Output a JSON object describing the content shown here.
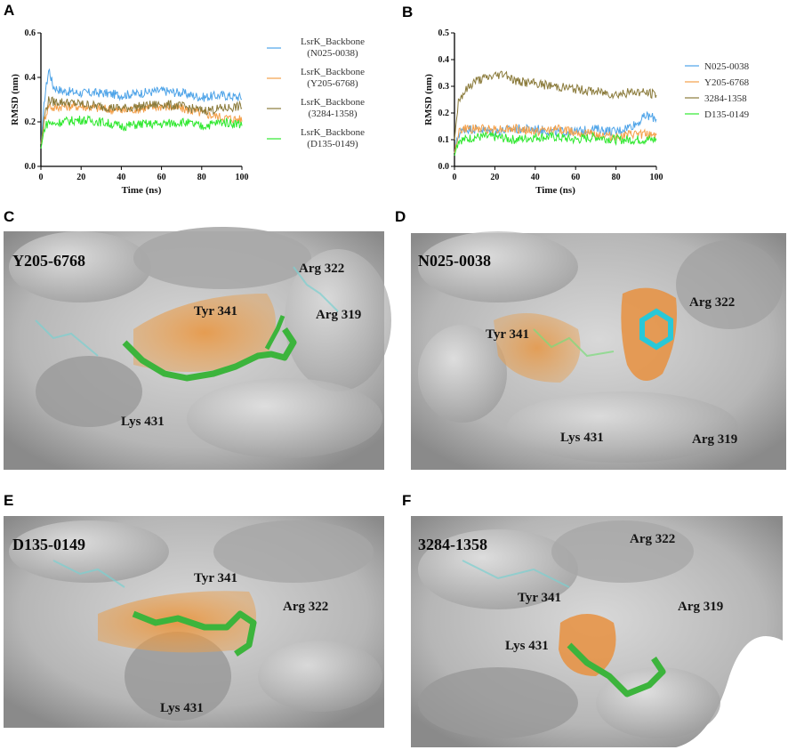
{
  "panels": {
    "A": "A",
    "B": "B",
    "C": "C",
    "D": "D",
    "E": "E",
    "F": "F"
  },
  "chart_data": [
    {
      "panel": "A",
      "type": "line",
      "xlabel": "Time (ns)",
      "ylabel": "RMSD (nm)",
      "xlim": [
        0,
        100
      ],
      "ylim": [
        0,
        0.6
      ],
      "xticks": [
        "0",
        "20",
        "40",
        "60",
        "80",
        "100"
      ],
      "yticks": [
        "0.0",
        "0.2",
        "0.4",
        "0.6"
      ],
      "legend_position": "right",
      "legend": [
        [
          "LsrK_Backbone",
          "(N025-0038)"
        ],
        [
          "LsrK_Backbone",
          "(Y205-6768)"
        ],
        [
          "LsrK_Backbone",
          "(3284-1358)"
        ],
        [
          "LsrK_Backbone",
          "(D135-0149)"
        ]
      ],
      "series": [
        {
          "color": "#4da3e8",
          "x": [
            0,
            2,
            4,
            6,
            10,
            20,
            30,
            40,
            50,
            60,
            70,
            80,
            90,
            100
          ],
          "y": [
            0.1,
            0.32,
            0.44,
            0.36,
            0.34,
            0.33,
            0.33,
            0.32,
            0.33,
            0.34,
            0.33,
            0.31,
            0.32,
            0.31
          ]
        },
        {
          "color": "#f4a04a",
          "x": [
            0,
            2,
            4,
            6,
            10,
            20,
            30,
            40,
            50,
            60,
            70,
            80,
            90,
            100
          ],
          "y": [
            0.1,
            0.22,
            0.28,
            0.26,
            0.27,
            0.27,
            0.26,
            0.25,
            0.26,
            0.27,
            0.26,
            0.24,
            0.22,
            0.21
          ]
        },
        {
          "color": "#8a7a3a",
          "x": [
            0,
            2,
            4,
            6,
            10,
            20,
            30,
            40,
            50,
            60,
            70,
            80,
            90,
            100
          ],
          "y": [
            0.1,
            0.24,
            0.3,
            0.29,
            0.29,
            0.28,
            0.27,
            0.26,
            0.27,
            0.28,
            0.27,
            0.25,
            0.26,
            0.27
          ]
        },
        {
          "color": "#2ee82e",
          "x": [
            0,
            2,
            4,
            6,
            10,
            20,
            30,
            40,
            50,
            60,
            70,
            80,
            90,
            100
          ],
          "y": [
            0.08,
            0.18,
            0.2,
            0.19,
            0.2,
            0.21,
            0.2,
            0.18,
            0.19,
            0.19,
            0.2,
            0.18,
            0.2,
            0.19
          ]
        }
      ]
    },
    {
      "panel": "B",
      "type": "line",
      "xlabel": "Time (ns)",
      "ylabel": "RMSD (nm)",
      "xlim": [
        0,
        100
      ],
      "ylim": [
        0,
        0.5
      ],
      "xticks": [
        "0",
        "20",
        "40",
        "60",
        "80",
        "100"
      ],
      "yticks": [
        "0.0",
        "0.1",
        "0.2",
        "0.3",
        "0.4",
        "0.5"
      ],
      "legend_position": "right",
      "legend": [
        "N025-0038",
        "Y205-6768",
        "3284-1358",
        "D135-0149"
      ],
      "series": [
        {
          "color": "#4da3e8",
          "x": [
            0,
            2,
            5,
            10,
            20,
            30,
            40,
            50,
            60,
            70,
            80,
            90,
            95,
            100
          ],
          "y": [
            0.05,
            0.12,
            0.14,
            0.14,
            0.13,
            0.14,
            0.14,
            0.13,
            0.13,
            0.14,
            0.13,
            0.16,
            0.19,
            0.18
          ]
        },
        {
          "color": "#f4a04a",
          "x": [
            0,
            2,
            5,
            10,
            20,
            30,
            40,
            50,
            60,
            70,
            80,
            90,
            95,
            100
          ],
          "y": [
            0.05,
            0.13,
            0.14,
            0.14,
            0.14,
            0.14,
            0.13,
            0.14,
            0.13,
            0.12,
            0.11,
            0.12,
            0.12,
            0.12
          ]
        },
        {
          "color": "#8a7a3a",
          "x": [
            0,
            2,
            5,
            10,
            20,
            25,
            30,
            40,
            50,
            60,
            70,
            80,
            90,
            100
          ],
          "y": [
            0.1,
            0.25,
            0.28,
            0.32,
            0.34,
            0.35,
            0.32,
            0.31,
            0.3,
            0.29,
            0.28,
            0.27,
            0.28,
            0.27
          ]
        },
        {
          "color": "#2ee82e",
          "x": [
            0,
            2,
            5,
            10,
            20,
            30,
            40,
            50,
            60,
            70,
            80,
            90,
            100
          ],
          "y": [
            0.04,
            0.1,
            0.1,
            0.11,
            0.11,
            0.1,
            0.11,
            0.11,
            0.1,
            0.11,
            0.1,
            0.1,
            0.1
          ]
        }
      ]
    }
  ],
  "structures": {
    "C": {
      "molecule": "Y205-6768",
      "residues": [
        "Tyr 341",
        "Arg 322",
        "Arg 319",
        "Lys 431"
      ]
    },
    "D": {
      "molecule": "N025-0038",
      "residues": [
        "Tyr 341",
        "Arg 322",
        "Lys 431",
        "Arg 319"
      ]
    },
    "E": {
      "molecule": "D135-0149",
      "residues": [
        "Tyr 341",
        "Arg 322",
        "Lys 431"
      ]
    },
    "F": {
      "molecule": "3284-1358",
      "residues": [
        "Arg 322",
        "Tyr 341",
        "Arg 319",
        "Lys 431"
      ]
    }
  }
}
